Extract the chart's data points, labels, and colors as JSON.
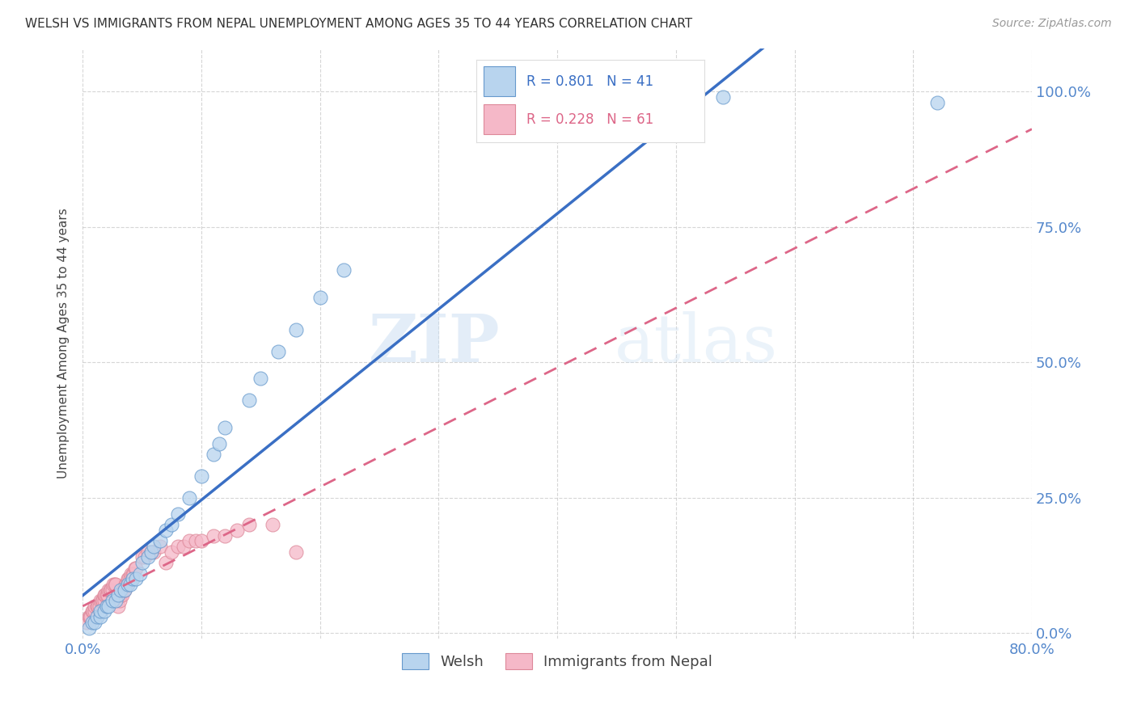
{
  "title": "WELSH VS IMMIGRANTS FROM NEPAL UNEMPLOYMENT AMONG AGES 35 TO 44 YEARS CORRELATION CHART",
  "source": "Source: ZipAtlas.com",
  "ylabel": "Unemployment Among Ages 35 to 44 years",
  "xlim": [
    0.0,
    0.8
  ],
  "ylim": [
    -0.01,
    1.08
  ],
  "welsh_R": 0.801,
  "welsh_N": 41,
  "nepal_R": 0.228,
  "nepal_N": 61,
  "welsh_color": "#b8d4ee",
  "welsh_edge_color": "#6699cc",
  "welsh_line_color": "#3a6fc4",
  "nepal_color": "#f5b8c8",
  "nepal_edge_color": "#dd8899",
  "nepal_line_color": "#dd6688",
  "legend_label_welsh": "Welsh",
  "legend_label_nepal": "Immigrants from Nepal",
  "watermark_zip": "ZIP",
  "watermark_atlas": "atlas",
  "background_color": "#ffffff",
  "grid_color": "#bbbbbb",
  "tick_color": "#5588cc",
  "welsh_x": [
    0.005,
    0.008,
    0.01,
    0.012,
    0.015,
    0.015,
    0.018,
    0.02,
    0.022,
    0.025,
    0.028,
    0.03,
    0.032,
    0.035,
    0.038,
    0.04,
    0.042,
    0.045,
    0.048,
    0.05,
    0.055,
    0.058,
    0.06,
    0.065,
    0.07,
    0.075,
    0.08,
    0.09,
    0.1,
    0.11,
    0.115,
    0.12,
    0.14,
    0.15,
    0.165,
    0.18,
    0.2,
    0.22,
    0.39,
    0.54,
    0.72
  ],
  "welsh_y": [
    0.01,
    0.02,
    0.02,
    0.03,
    0.03,
    0.04,
    0.04,
    0.05,
    0.05,
    0.06,
    0.06,
    0.07,
    0.08,
    0.08,
    0.09,
    0.09,
    0.1,
    0.1,
    0.11,
    0.13,
    0.14,
    0.15,
    0.16,
    0.17,
    0.19,
    0.2,
    0.22,
    0.25,
    0.29,
    0.33,
    0.35,
    0.38,
    0.43,
    0.47,
    0.52,
    0.56,
    0.62,
    0.67,
    0.99,
    0.99,
    0.98
  ],
  "nepal_x": [
    0.003,
    0.005,
    0.006,
    0.007,
    0.008,
    0.009,
    0.01,
    0.01,
    0.012,
    0.013,
    0.014,
    0.015,
    0.016,
    0.017,
    0.018,
    0.018,
    0.019,
    0.02,
    0.021,
    0.022,
    0.023,
    0.024,
    0.025,
    0.026,
    0.027,
    0.028,
    0.03,
    0.031,
    0.032,
    0.033,
    0.034,
    0.035,
    0.036,
    0.037,
    0.038,
    0.039,
    0.04,
    0.041,
    0.042,
    0.043,
    0.044,
    0.045,
    0.05,
    0.052,
    0.055,
    0.058,
    0.06,
    0.065,
    0.07,
    0.075,
    0.08,
    0.085,
    0.09,
    0.095,
    0.1,
    0.11,
    0.12,
    0.13,
    0.14,
    0.16,
    0.18
  ],
  "nepal_y": [
    0.02,
    0.03,
    0.03,
    0.03,
    0.04,
    0.04,
    0.04,
    0.05,
    0.05,
    0.05,
    0.05,
    0.06,
    0.06,
    0.06,
    0.06,
    0.07,
    0.07,
    0.07,
    0.07,
    0.08,
    0.08,
    0.08,
    0.08,
    0.09,
    0.09,
    0.09,
    0.05,
    0.06,
    0.07,
    0.07,
    0.08,
    0.08,
    0.09,
    0.09,
    0.1,
    0.1,
    0.1,
    0.11,
    0.11,
    0.11,
    0.12,
    0.12,
    0.14,
    0.14,
    0.15,
    0.15,
    0.15,
    0.16,
    0.13,
    0.15,
    0.16,
    0.16,
    0.17,
    0.17,
    0.17,
    0.18,
    0.18,
    0.19,
    0.2,
    0.2,
    0.15
  ]
}
